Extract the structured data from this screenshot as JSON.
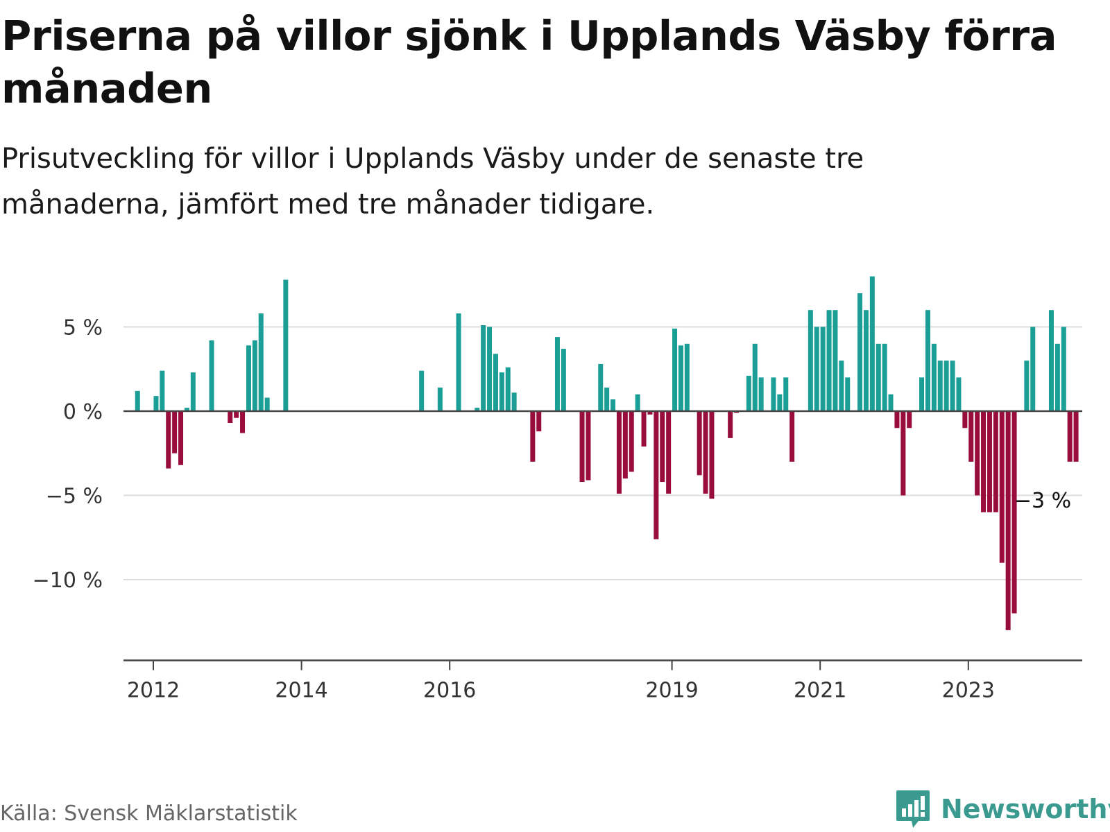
{
  "header": {
    "title": "Priserna på villor sjönk i Upplands Väsby förra månaden",
    "subtitle": "Prisutveckling för villor i Upplands Väsby under de senaste tre månaderna, jämfört med tre månader tidigare."
  },
  "footer": {
    "source": "Källa: Svensk Mäklarstatistik",
    "brand": "Newsworthy",
    "brand_icon": "bar-chart-logo-icon"
  },
  "colors": {
    "positive": "#1a9e96",
    "negative": "#990d3d",
    "grid": "#dddddd",
    "axis": "#444444",
    "brand": "#3b9a8f"
  },
  "chart_data": {
    "type": "bar",
    "title": "Priserna på villor sjönk i Upplands Väsby förra månaden",
    "ylabel": "",
    "xlabel": "",
    "ylim": [
      -15,
      8.5
    ],
    "yticks": [
      5,
      0,
      -5,
      -10
    ],
    "ytick_labels": [
      "5 %",
      "0 %",
      "−5 %",
      "−10 %"
    ],
    "xticks": [
      2012,
      2014,
      2016,
      2019,
      2021,
      2023
    ],
    "xtick_labels": [
      "2012",
      "2014",
      "2016",
      "2019",
      "2021",
      "2023"
    ],
    "grid": true,
    "annotation": {
      "text": "−3 %",
      "month": 145
    },
    "series": [
      {
        "name": "Prisutveckling",
        "unit": "%",
        "start": "2012-01",
        "values": [
          null,
          null,
          1.2,
          null,
          null,
          0.9,
          2.4,
          -3.4,
          -2.5,
          -3.2,
          0.2,
          2.3,
          null,
          null,
          4.2,
          null,
          null,
          -0.7,
          -0.4,
          -1.3,
          3.9,
          4.2,
          5.8,
          0.8,
          null,
          null,
          7.8,
          null,
          null,
          null,
          null,
          null,
          null,
          null,
          null,
          null,
          null,
          null,
          null,
          null,
          null,
          null,
          null,
          null,
          null,
          null,
          null,
          null,
          2.4,
          null,
          null,
          1.4,
          null,
          null,
          5.8,
          null,
          null,
          0.2,
          5.1,
          5.0,
          3.4,
          2.3,
          2.6,
          1.1,
          null,
          null,
          -3.0,
          -1.2,
          null,
          null,
          4.4,
          3.7,
          null,
          null,
          -4.2,
          -4.1,
          null,
          2.8,
          1.4,
          0.7,
          -4.9,
          -4.0,
          -3.6,
          1.0,
          -2.1,
          -0.2,
          -7.6,
          -4.2,
          -4.9,
          4.9,
          3.9,
          4.0,
          null,
          -3.8,
          -4.9,
          -5.2,
          null,
          null,
          -1.6,
          -0.1,
          null,
          2.1,
          4.0,
          2.0,
          null,
          2.0,
          1.0,
          2.0,
          -3.0,
          null,
          null,
          6.0,
          5.0,
          5.0,
          6.0,
          6.0,
          3.0,
          2.0,
          null,
          7.0,
          6.0,
          8.0,
          4.0,
          4.0,
          1.0,
          -1.0,
          -5.0,
          -1.0,
          null,
          2.0,
          6.0,
          4.0,
          3.0,
          3.0,
          3.0,
          2.0,
          -1.0,
          -3.0,
          -5.0,
          -6.0,
          -6.0,
          -6.0,
          -9.0,
          -13.0,
          -12.0,
          null,
          3.0,
          5.0,
          null,
          null,
          6.0,
          4.0,
          5.0,
          -3.0,
          -3.0
        ]
      }
    ]
  }
}
